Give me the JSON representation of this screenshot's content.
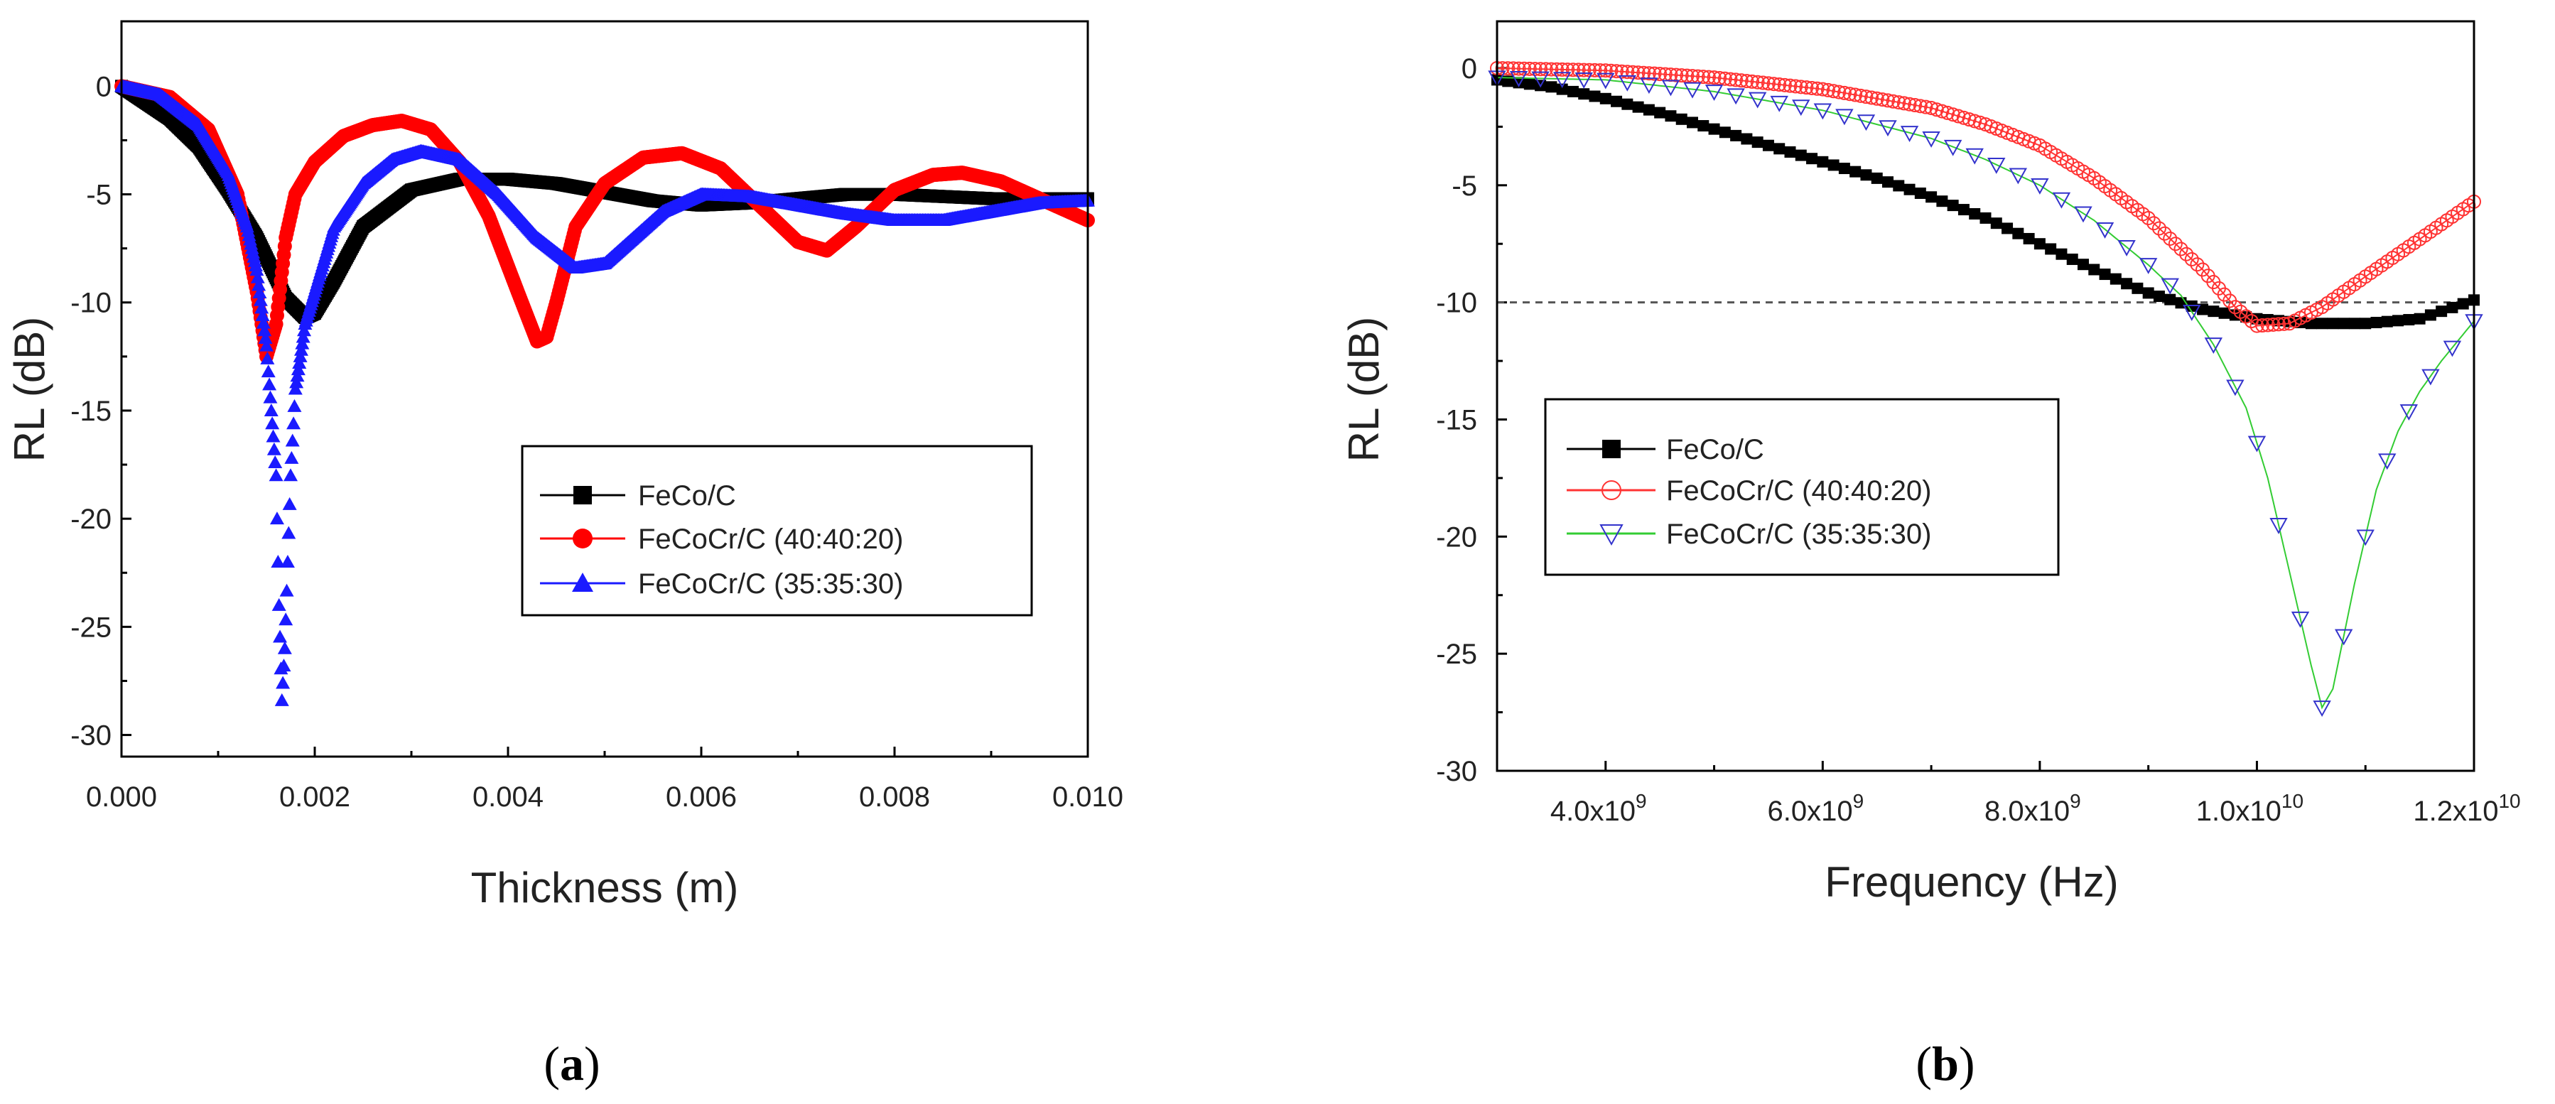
{
  "colors": {
    "black": "#000000",
    "red": "#ff0000",
    "blue": "#1a1aff",
    "green_line": "#33cc33",
    "hollow_red": "#ff3333",
    "hollow_blue": "#3333cc",
    "ref_line": "#555555"
  },
  "chart_data": [
    {
      "type": "line",
      "panel_label": "a",
      "xlabel": "Thickness (m)",
      "ylabel": "RL (dB)",
      "xlim": [
        0,
        0.01
      ],
      "ylim": [
        -31,
        3
      ],
      "x_ticks": [
        0.0,
        0.002,
        0.004,
        0.006,
        0.008,
        0.01
      ],
      "x_tick_labels": [
        "0.000",
        "0.002",
        "0.004",
        "0.006",
        "0.008",
        "0.010"
      ],
      "y_ticks": [
        0,
        -5,
        -10,
        -15,
        -20,
        -25,
        -30
      ],
      "y_tick_labels": [
        "0",
        "-5",
        "-10",
        "-15",
        "-20",
        "-25",
        "-30"
      ],
      "legend_position": "center-right",
      "series": [
        {
          "name": "FeCo/C",
          "marker": "square-filled",
          "color": "#000000",
          "x": [
            0,
            0.0005,
            0.0008,
            0.0011,
            0.0014,
            0.0017,
            0.0019,
            0.002,
            0.0022,
            0.0025,
            0.003,
            0.0035,
            0.004,
            0.0045,
            0.005,
            0.0055,
            0.006,
            0.0065,
            0.007,
            0.0075,
            0.008,
            0.009,
            0.01
          ],
          "y": [
            0,
            -1.5,
            -2.8,
            -4.8,
            -7.0,
            -9.8,
            -10.7,
            -10.5,
            -9.0,
            -6.5,
            -4.8,
            -4.3,
            -4.3,
            -4.5,
            -4.9,
            -5.3,
            -5.5,
            -5.4,
            -5.2,
            -5.0,
            -5.0,
            -5.2,
            -5.2
          ]
        },
        {
          "name": "FeCoCr/C (40:40:20)",
          "marker": "circle-filled",
          "color": "#ff0000",
          "x": [
            0,
            0.0005,
            0.0009,
            0.0012,
            0.0014,
            0.0015,
            0.0016,
            0.0017,
            0.0018,
            0.002,
            0.0023,
            0.0026,
            0.0029,
            0.0032,
            0.0035,
            0.0038,
            0.0041,
            0.0043,
            0.0044,
            0.0045,
            0.0047,
            0.005,
            0.0054,
            0.0058,
            0.0062,
            0.0066,
            0.007,
            0.0073,
            0.0076,
            0.008,
            0.0084,
            0.0087,
            0.0091,
            0.0095,
            0.01
          ],
          "y": [
            0,
            -0.5,
            -2.0,
            -5.0,
            -9.5,
            -12.5,
            -11.0,
            -7.0,
            -5.0,
            -3.5,
            -2.3,
            -1.8,
            -1.6,
            -2.0,
            -3.5,
            -6.0,
            -9.5,
            -11.8,
            -11.6,
            -10.0,
            -6.5,
            -4.5,
            -3.3,
            -3.1,
            -3.8,
            -5.5,
            -7.2,
            -7.6,
            -6.5,
            -4.8,
            -4.1,
            -4.0,
            -4.4,
            -5.2,
            -6.2
          ]
        },
        {
          "name": "FeCoCr/C (35:35:30)",
          "marker": "triangle-up-filled",
          "color": "#1a1aff",
          "x": [
            0,
            0.0004,
            0.0008,
            0.0011,
            0.0013,
            0.0014,
            0.0015,
            0.0016,
            0.00163,
            0.00166,
            0.00169,
            0.00172,
            0.00175,
            0.0018,
            0.0019,
            0.002,
            0.0022,
            0.0025,
            0.0028,
            0.0031,
            0.0035,
            0.0039,
            0.0043,
            0.0047,
            0.005,
            0.0053,
            0.0056,
            0.006,
            0.0065,
            0.007,
            0.0075,
            0.008,
            0.0085,
            0.009,
            0.0095,
            0.01
          ],
          "y": [
            0,
            -0.4,
            -1.8,
            -4.0,
            -6.5,
            -8.5,
            -12.0,
            -18.0,
            -24.0,
            -28.4,
            -26.0,
            -22.0,
            -18.0,
            -14.0,
            -11.0,
            -9.5,
            -6.5,
            -4.5,
            -3.4,
            -3.0,
            -3.4,
            -5.0,
            -7.0,
            -8.4,
            -8.2,
            -7.0,
            -5.8,
            -5.0,
            -5.1,
            -5.5,
            -5.9,
            -6.2,
            -6.2,
            -5.8,
            -5.4,
            -5.3
          ]
        }
      ]
    },
    {
      "type": "line",
      "panel_label": "b",
      "xlabel": "Frequency (Hz)",
      "ylabel": "RL (dB)",
      "xlim": [
        3000000000.0,
        12000000000.0
      ],
      "ylim": [
        -30,
        2
      ],
      "x_ticks": [
        4000000000.0,
        6000000000.0,
        8000000000.0,
        10000000000.0,
        12000000000.0
      ],
      "x_tick_mantissas": [
        "4.0x10",
        "6.0x10",
        "8.0x10",
        "1.0x10",
        "1.2x10"
      ],
      "x_tick_exponents": [
        "9",
        "9",
        "9",
        "10",
        "10"
      ],
      "y_ticks": [
        0,
        -5,
        -10,
        -15,
        -20,
        -25,
        -30
      ],
      "y_tick_labels": [
        "0",
        "-5",
        "-10",
        "-15",
        "-20",
        "-25",
        "-30"
      ],
      "reference_line_y": -10,
      "legend_position": "upper-left",
      "series": [
        {
          "name": "FeCo/C",
          "marker": "square-filled",
          "color": "#000000",
          "x": [
            3000000000.0,
            3500000000.0,
            4000000000.0,
            4500000000.0,
            5000000000.0,
            5500000000.0,
            6000000000.0,
            6500000000.0,
            7000000000.0,
            7500000000.0,
            8000000000.0,
            8500000000.0,
            9000000000.0,
            9500000000.0,
            10000000000.0,
            10500000000.0,
            11000000000.0,
            11500000000.0,
            12000000000.0
          ],
          "y": [
            -0.5,
            -0.8,
            -1.3,
            -1.9,
            -2.6,
            -3.3,
            -4.0,
            -4.7,
            -5.5,
            -6.4,
            -7.5,
            -8.6,
            -9.6,
            -10.3,
            -10.7,
            -10.9,
            -10.9,
            -10.7,
            -9.9
          ]
        },
        {
          "name": "FeCoCr/C (40:40:20)",
          "marker": "circle-hollow",
          "color": "#ff3333",
          "x": [
            3000000000.0,
            4000000000.0,
            5000000000.0,
            6000000000.0,
            7000000000.0,
            7500000000.0,
            8000000000.0,
            8500000000.0,
            9000000000.0,
            9500000000.0,
            9800000000.0,
            10000000000.0,
            10300000000.0,
            10600000000.0,
            11000000000.0,
            11500000000.0,
            12000000000.0
          ],
          "y": [
            0,
            -0.1,
            -0.4,
            -0.9,
            -1.7,
            -2.4,
            -3.3,
            -4.7,
            -6.4,
            -8.6,
            -10.2,
            -11.0,
            -10.9,
            -10.2,
            -8.9,
            -7.3,
            -5.7
          ]
        },
        {
          "name": "FeCoCr/C (35:35:30)",
          "marker": "triangle-down-hollow",
          "color": "#3333cc",
          "line_color": "#33cc33",
          "x": [
            3000000000.0,
            4000000000.0,
            5000000000.0,
            6000000000.0,
            7000000000.0,
            7500000000.0,
            8000000000.0,
            8500000000.0,
            9000000000.0,
            9300000000.0,
            9600000000.0,
            9900000000.0,
            10100000000.0,
            10300000000.0,
            10500000000.0,
            10600000000.0,
            10700000000.0,
            10900000000.0,
            11100000000.0,
            11300000000.0,
            11500000000.0,
            11700000000.0,
            12000000000.0
          ],
          "y": [
            -0.4,
            -0.5,
            -1.0,
            -1.8,
            -3.0,
            -3.9,
            -5.0,
            -6.5,
            -8.4,
            -9.7,
            -11.8,
            -14.5,
            -17.5,
            -21.5,
            -25.5,
            -27.3,
            -26.5,
            -22.0,
            -18.0,
            -15.5,
            -13.8,
            -12.5,
            -10.8
          ]
        }
      ]
    }
  ]
}
